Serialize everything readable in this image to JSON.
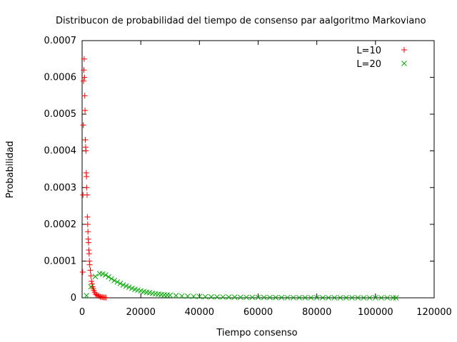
{
  "chart_data": {
    "type": "scatter",
    "title": "Distribucon de probabilidad del tiempo de consenso par aalgoritmo Markoviano",
    "xlabel": "Tiempo consenso",
    "ylabel": "Probabilidad",
    "xlim": [
      0,
      120000
    ],
    "ylim": [
      0,
      0.0007
    ],
    "x_ticks": [
      0,
      20000,
      40000,
      60000,
      80000,
      100000,
      120000
    ],
    "y_ticks": [
      0,
      0.0001,
      0.0002,
      0.0003,
      0.0004,
      0.0005,
      0.0006,
      0.0007
    ],
    "x_tick_labels": [
      "0",
      "20000",
      "40000",
      "60000",
      "80000",
      "100000",
      "120000"
    ],
    "y_tick_labels": [
      "0",
      "0.0001",
      "0.0002",
      "0.0003",
      "0.0004",
      "0.0005",
      "0.0006",
      "0.0007"
    ],
    "grid": false,
    "legend_position": "top-right",
    "series": [
      {
        "name": "L=10",
        "marker": "plus",
        "color": "#ff0000",
        "points": [
          [
            200,
            7e-05
          ],
          [
            300,
            0.00028
          ],
          [
            400,
            0.00047
          ],
          [
            500,
            0.00059
          ],
          [
            600,
            0.00062
          ],
          [
            700,
            0.00065
          ],
          [
            800,
            0.0006
          ],
          [
            900,
            0.00055
          ],
          [
            1000,
            0.00051
          ],
          [
            1100,
            0.00043
          ],
          [
            1200,
            0.00041
          ],
          [
            1300,
            0.0004
          ],
          [
            1400,
            0.00034
          ],
          [
            1500,
            0.00033
          ],
          [
            1600,
            0.0003
          ],
          [
            1700,
            0.00028
          ],
          [
            1800,
            0.00022
          ],
          [
            1900,
            0.0002
          ],
          [
            2000,
            0.00018
          ],
          [
            2100,
            0.00016
          ],
          [
            2200,
            0.00015
          ],
          [
            2300,
            0.00013
          ],
          [
            2400,
            0.00012
          ],
          [
            2500,
            0.0001
          ],
          [
            2600,
            9e-05
          ],
          [
            2800,
            7.5e-05
          ],
          [
            3000,
            6e-05
          ],
          [
            3200,
            4.5e-05
          ],
          [
            3400,
            3.8e-05
          ],
          [
            3600,
            3e-05
          ],
          [
            3800,
            2.5e-05
          ],
          [
            4000,
            2e-05
          ],
          [
            4300,
            1.5e-05
          ],
          [
            4600,
            1e-05
          ],
          [
            5000,
            8e-06
          ],
          [
            5400,
            6e-06
          ],
          [
            5800,
            5e-06
          ],
          [
            6200,
            3e-06
          ],
          [
            6600,
            2e-06
          ],
          [
            7000,
            2e-06
          ],
          [
            7400,
            1e-06
          ],
          [
            7800,
            1e-06
          ],
          [
            8200,
            5e-07
          ]
        ]
      },
      {
        "name": "L=20",
        "marker": "cross",
        "color": "#00aa00",
        "points": [
          [
            1500,
            6e-06
          ],
          [
            3000,
            3e-05
          ],
          [
            4500,
            5.8e-05
          ],
          [
            6000,
            6.6e-05
          ],
          [
            7000,
            6.5e-05
          ],
          [
            8000,
            6.2e-05
          ],
          [
            9000,
            5.7e-05
          ],
          [
            10000,
            5.2e-05
          ],
          [
            11000,
            4.7e-05
          ],
          [
            12000,
            4.3e-05
          ],
          [
            13000,
            3.9e-05
          ],
          [
            14000,
            3.5e-05
          ],
          [
            15000,
            3.2e-05
          ],
          [
            16000,
            2.9e-05
          ],
          [
            17000,
            2.6e-05
          ],
          [
            18000,
            2.3e-05
          ],
          [
            19000,
            2.1e-05
          ],
          [
            20000,
            1.9e-05
          ],
          [
            21000,
            1.7e-05
          ],
          [
            22000,
            1.5e-05
          ],
          [
            23000,
            1.4e-05
          ],
          [
            24000,
            1.2e-05
          ],
          [
            25000,
            1.1e-05
          ],
          [
            26000,
            1e-05
          ],
          [
            27000,
            9e-06
          ],
          [
            28000,
            8e-06
          ],
          [
            29000,
            7.5e-06
          ],
          [
            30000,
            7e-06
          ],
          [
            32000,
            6e-06
          ],
          [
            34000,
            5e-06
          ],
          [
            36000,
            4.5e-06
          ],
          [
            38000,
            4e-06
          ],
          [
            40000,
            3.5e-06
          ],
          [
            42000,
            3e-06
          ],
          [
            44000,
            2.7e-06
          ],
          [
            46000,
            2.4e-06
          ],
          [
            48000,
            2.1e-06
          ],
          [
            50000,
            1.9e-06
          ],
          [
            52000,
            1.7e-06
          ],
          [
            54000,
            1.5e-06
          ],
          [
            56000,
            1.3e-06
          ],
          [
            58000,
            1.2e-06
          ],
          [
            60000,
            1.1e-06
          ],
          [
            62000,
            1e-06
          ],
          [
            64000,
            9e-07
          ],
          [
            66000,
            8e-07
          ],
          [
            68000,
            7e-07
          ],
          [
            70000,
            6e-07
          ],
          [
            72000,
            6e-07
          ],
          [
            74000,
            5e-07
          ],
          [
            76000,
            5e-07
          ],
          [
            78000,
            4e-07
          ],
          [
            80000,
            4e-07
          ],
          [
            82000,
            3e-07
          ],
          [
            84000,
            3e-07
          ],
          [
            86000,
            3e-07
          ],
          [
            88000,
            2e-07
          ],
          [
            90000,
            2e-07
          ],
          [
            92000,
            2e-07
          ],
          [
            94000,
            2e-07
          ],
          [
            96000,
            1e-07
          ],
          [
            98000,
            1e-07
          ],
          [
            100000,
            1e-07
          ],
          [
            102000,
            1e-07
          ],
          [
            104000,
            1e-07
          ],
          [
            106000,
            1e-07
          ],
          [
            107000,
            5e-08
          ]
        ]
      }
    ]
  }
}
